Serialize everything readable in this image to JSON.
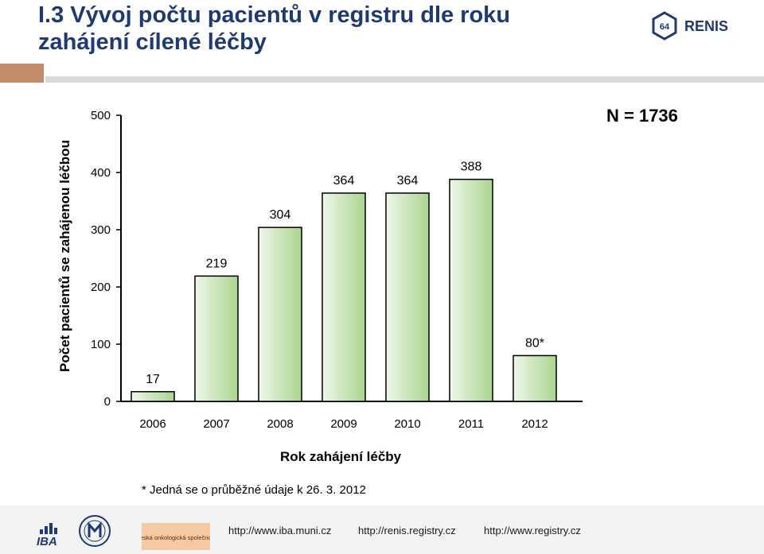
{
  "header": {
    "title": "I.3 Vývoj počtu pacientů v registru dle roku zahájení cílené léčby",
    "logo": {
      "badge_text": "64",
      "name": "RENIS",
      "color": "#1f3a6e"
    }
  },
  "chart_data": {
    "type": "bar",
    "categories": [
      "2006",
      "2007",
      "2008",
      "2009",
      "2010",
      "2011",
      "2012"
    ],
    "values": [
      17,
      219,
      304,
      364,
      364,
      388,
      80
    ],
    "value_labels": [
      "17",
      "219",
      "304",
      "364",
      "364",
      "388",
      "80*"
    ],
    "ylabel": "Počet pacientů se zahájenou léčbou",
    "xlabel": "Rok zahájení léčby",
    "ylim": [
      0,
      500
    ],
    "yticks": [
      0,
      100,
      200,
      300,
      400,
      500
    ],
    "grid": false,
    "legend": "none",
    "annotation": "N = 1736",
    "footnote": "* Jedná se o průběžné údaje k 26. 3. 2012",
    "bar_fill_light": "#eef7e9",
    "bar_fill_dark": "#a9d48f"
  },
  "footer": {
    "logos": [
      "IBA",
      "Masarykova univerzita",
      "Česká onkologická společnost ČLS JEP"
    ],
    "iba_text": "IBA",
    "cos_text": "Česká onkologická společnost",
    "links": [
      "http://www.iba.muni.cz",
      "http://renis.registry.cz",
      "http://www.registry.cz"
    ]
  },
  "colors": {
    "title": "#1f3a6e",
    "accent_brown": "#c28b6b",
    "divider_gray": "#d9d9d9"
  }
}
